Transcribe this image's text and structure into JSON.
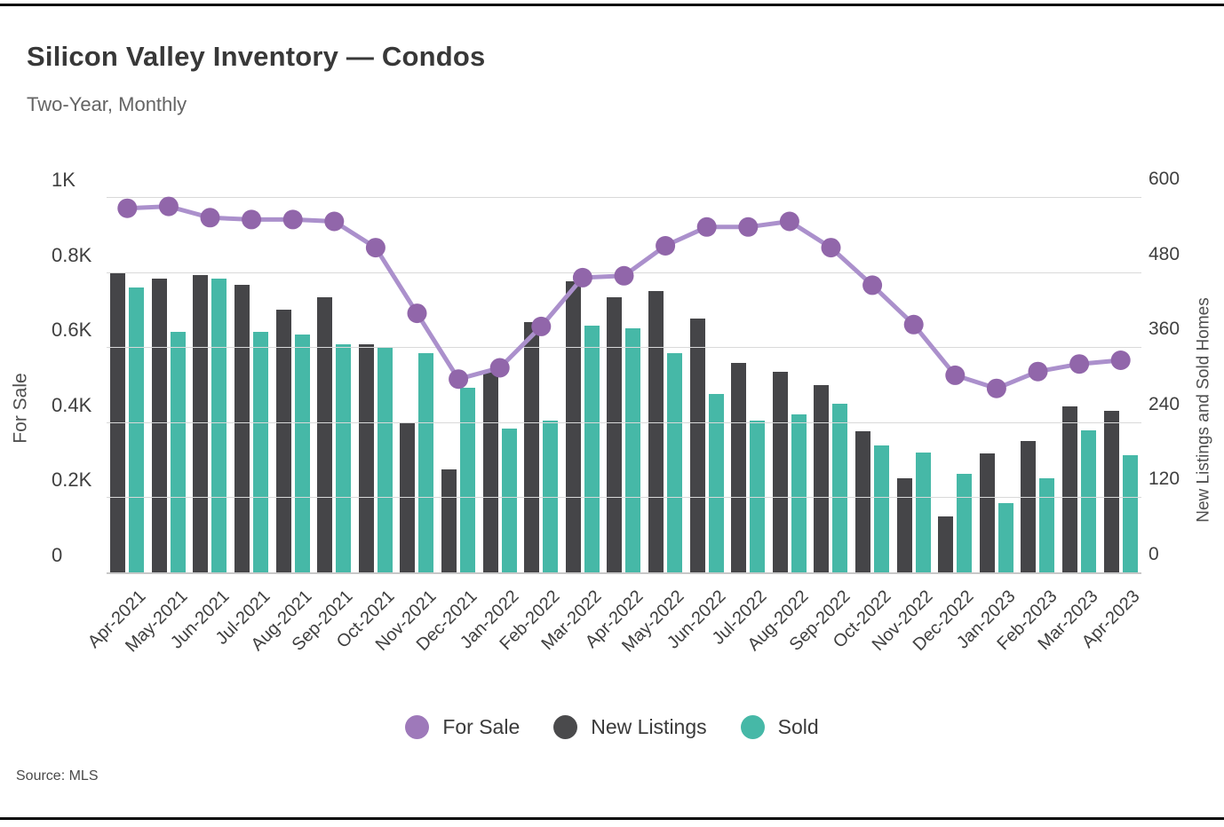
{
  "header": {
    "title": "Silicon Valley Inventory — Condos",
    "subtitle": "Two-Year, Monthly"
  },
  "source": "Source: MLS",
  "chart_data": {
    "type": "combo-bar-line",
    "categories": [
      "Apr-2021",
      "May-2021",
      "Jun-2021",
      "Jul-2021",
      "Aug-2021",
      "Sep-2021",
      "Oct-2021",
      "Nov-2021",
      "Dec-2021",
      "Jan-2022",
      "Feb-2022",
      "Mar-2022",
      "Apr-2022",
      "May-2022",
      "Jun-2022",
      "Jul-2022",
      "Aug-2022",
      "Sep-2022",
      "Oct-2022",
      "Nov-2022",
      "Dec-2022",
      "Jan-2023",
      "Feb-2023",
      "Mar-2023",
      "Apr-2023"
    ],
    "series": [
      {
        "name": "For Sale",
        "type": "line",
        "axis": "left",
        "dot_color": "#9166aa",
        "line_color": "#ab90cc",
        "legend_color": "#9e79ba",
        "values": [
          970,
          975,
          945,
          940,
          940,
          935,
          865,
          690,
          515,
          545,
          655,
          785,
          790,
          870,
          920,
          920,
          935,
          865,
          765,
          660,
          525,
          490,
          535,
          555,
          565
        ]
      },
      {
        "name": "New Listings",
        "type": "bar",
        "axis": "right",
        "color": "#454548",
        "legend_color": "#4a4a4c",
        "values": [
          480,
          470,
          475,
          460,
          420,
          440,
          365,
          240,
          165,
          320,
          400,
          465,
          440,
          450,
          405,
          335,
          320,
          300,
          225,
          150,
          90,
          190,
          210,
          265,
          258
        ]
      },
      {
        "name": "Sold",
        "type": "bar",
        "axis": "right",
        "color": "#46b8a7",
        "legend_color": "#46b8a7",
        "values": [
          455,
          385,
          470,
          385,
          380,
          365,
          360,
          350,
          295,
          230,
          243,
          395,
          390,
          350,
          285,
          242,
          253,
          270,
          203,
          192,
          157,
          110,
          150,
          227,
          187
        ]
      }
    ],
    "left_axis": {
      "title": "For Sale",
      "min": 0,
      "max": 1000,
      "tick_labels": [
        "1K",
        "0.8K",
        "0.6K",
        "0.4K",
        "0.2K",
        "0"
      ]
    },
    "right_axis": {
      "title": "New Listings and Sold Homes",
      "min": 0,
      "max": 600,
      "tick_labels": [
        "600",
        "480",
        "360",
        "240",
        "120",
        "0"
      ]
    },
    "x_axis": {
      "tick_rotation_deg": -45
    },
    "grid": true,
    "legend_position": "bottom-center"
  }
}
